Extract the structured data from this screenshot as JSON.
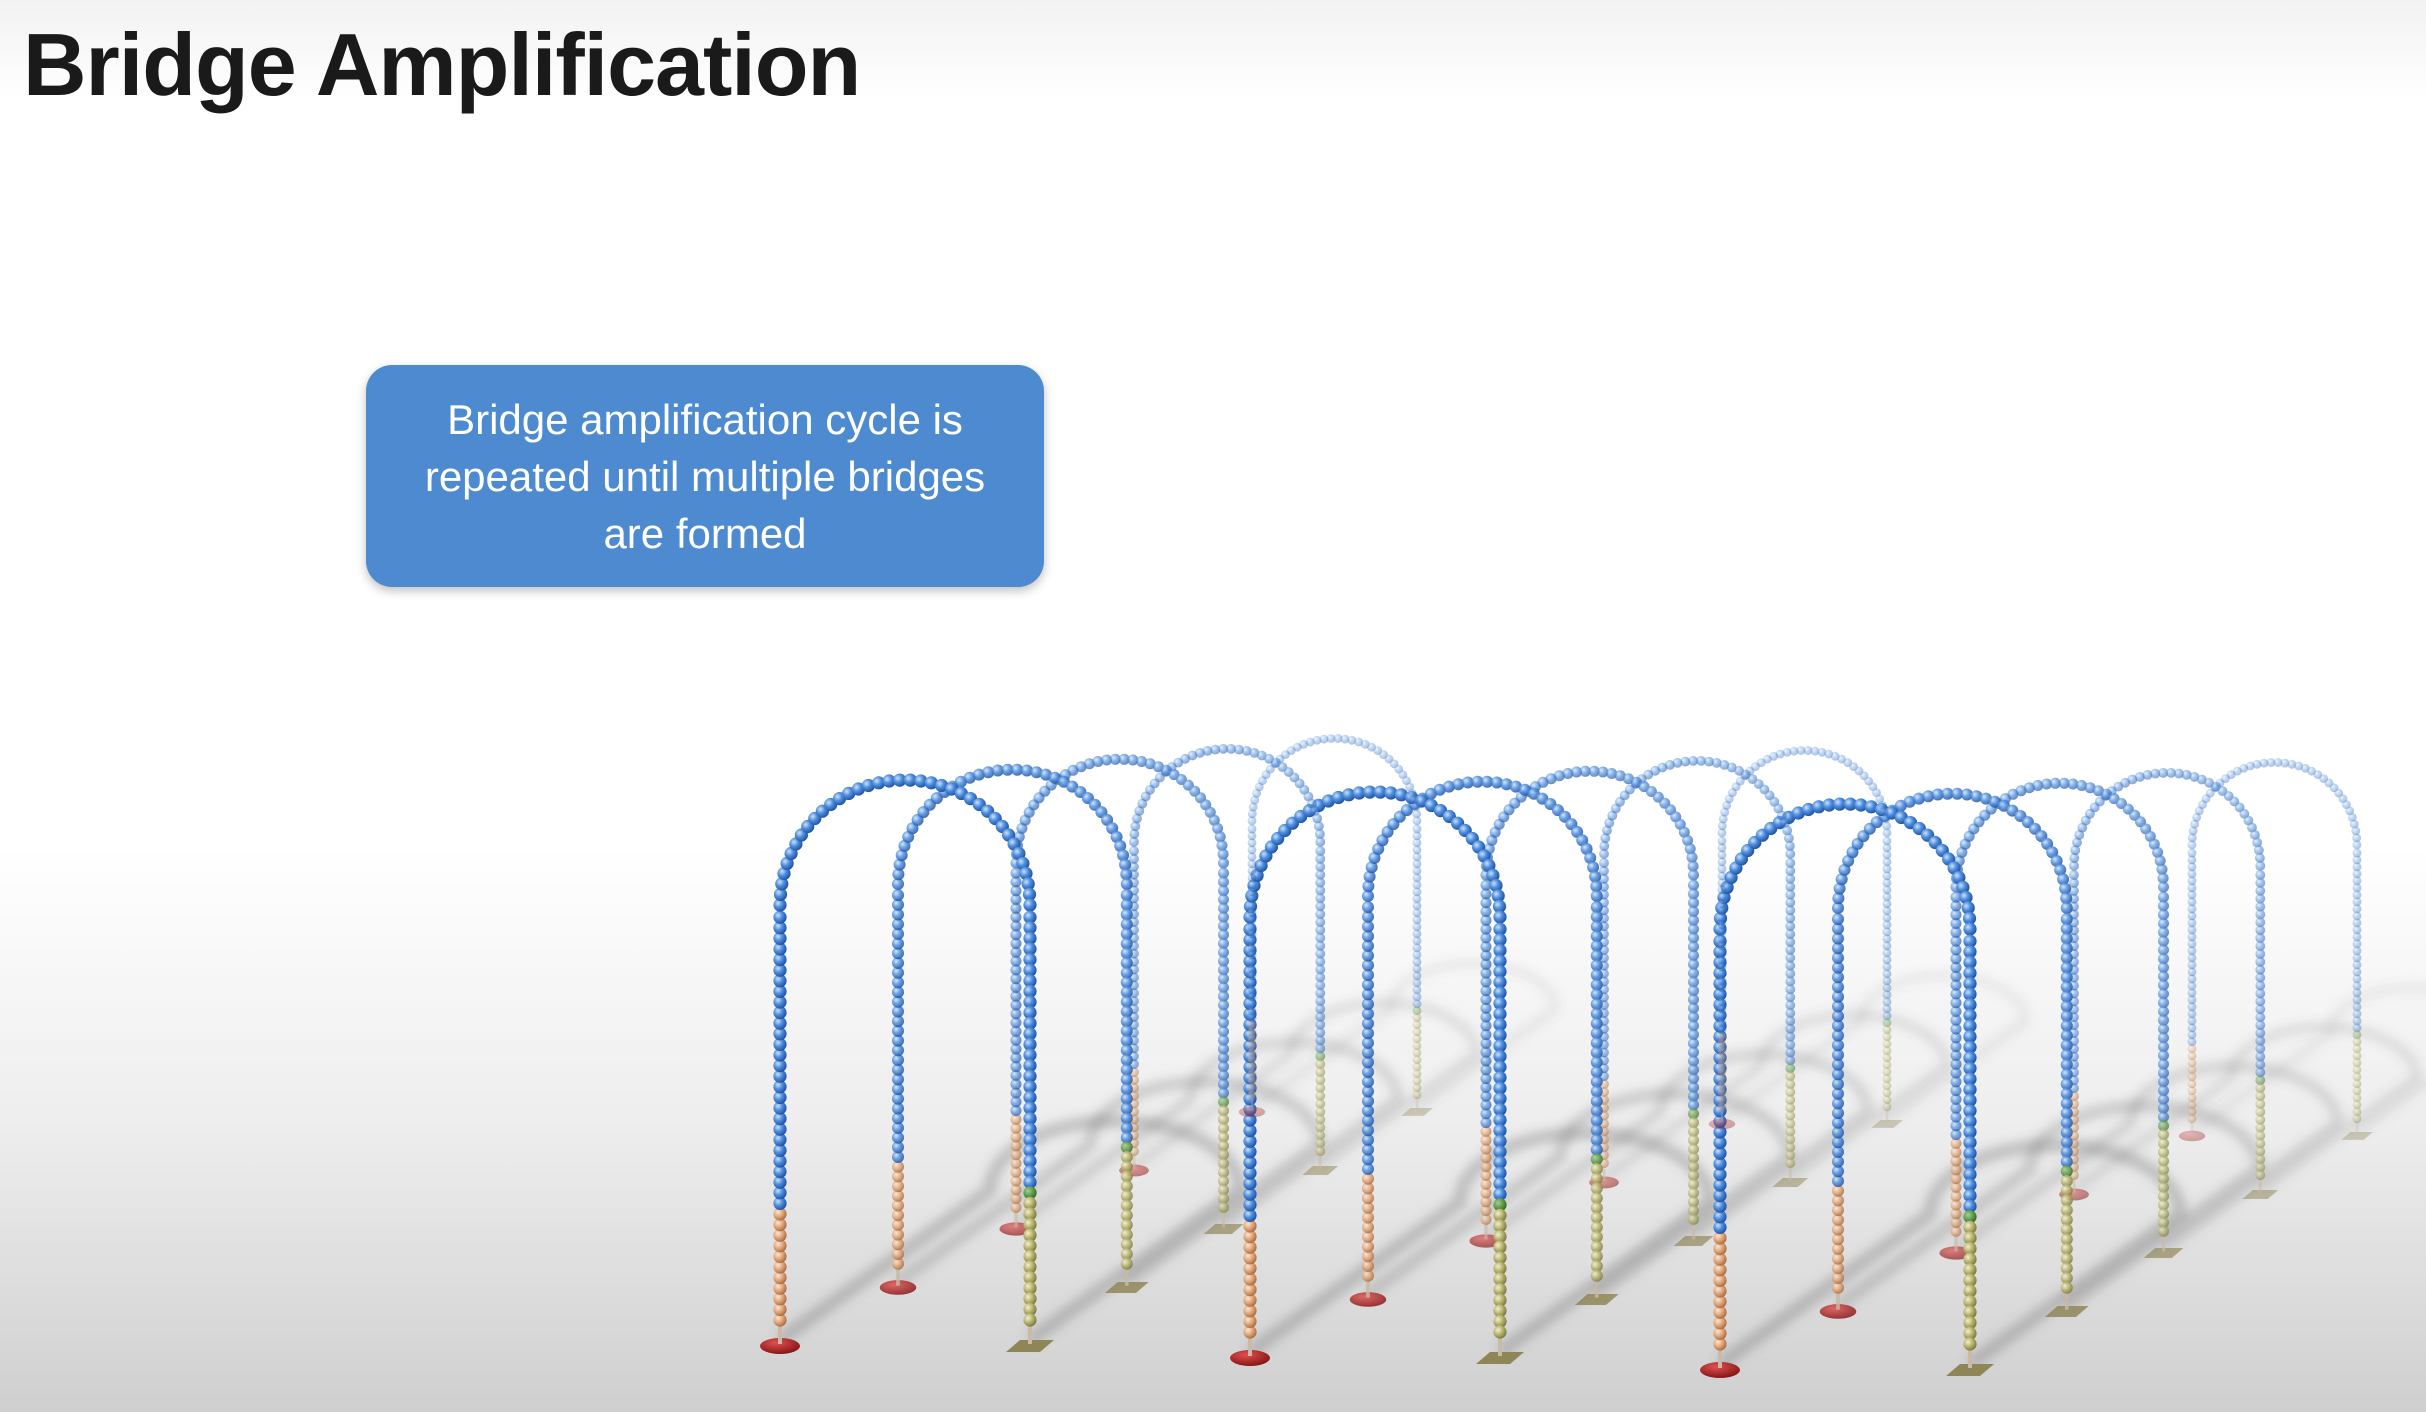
{
  "title": "Bridge Amplification",
  "callout": {
    "text": "Bridge amplification cycle is repeated until multiple bridges are formed"
  },
  "colors": {
    "callout_background": "#4d8ad0",
    "strand_blue": "#3f7fd6",
    "segment_orange": "#e2a77a",
    "segment_olive": "#b8b46e",
    "node_green": "#3f8a2c",
    "anchor_red": "#b01a1a",
    "anchor_tan": "#a39a6a"
  },
  "diagram": {
    "rows": 3,
    "bridges_per_row": 5,
    "description_icon": "dna-bridge-arch"
  }
}
